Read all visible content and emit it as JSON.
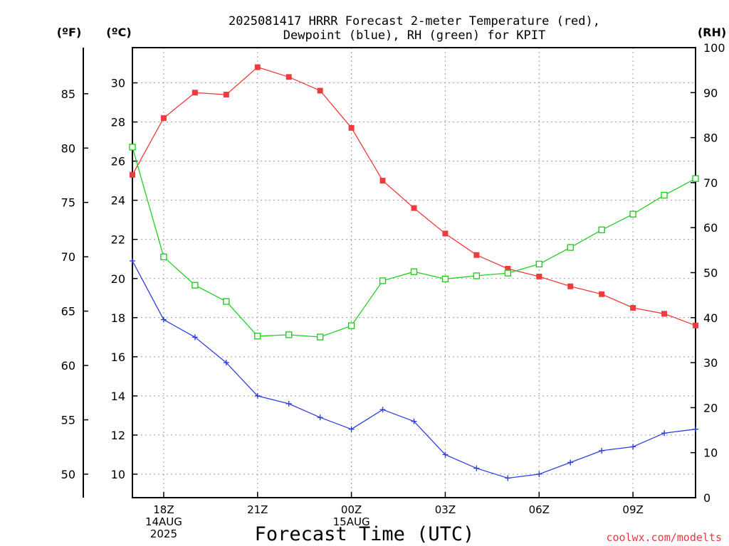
{
  "chart_data": {
    "type": "line",
    "title_lines": [
      "2025081417 HRRR Forecast 2-meter Temperature (red),",
      "Dewpoint (blue), RH (green) for KPIT"
    ],
    "xlabel": "Forecast Time (UTC)",
    "credit": "coolwx.com/modelts",
    "units": {
      "fahrenheit": "(ºF)",
      "celsius": "(ºC)",
      "rh": "(RH)"
    },
    "x_hours": [
      0,
      1,
      2,
      3,
      4,
      5,
      6,
      7,
      8,
      9,
      10,
      11,
      12,
      13,
      14,
      15,
      16,
      17,
      18
    ],
    "x_ticks": [
      {
        "hour": 1,
        "lines": [
          "18Z",
          "14AUG",
          "2025"
        ]
      },
      {
        "hour": 4,
        "lines": [
          "21Z"
        ]
      },
      {
        "hour": 7,
        "lines": [
          "00Z",
          "15AUG"
        ]
      },
      {
        "hour": 10,
        "lines": [
          "03Z"
        ]
      },
      {
        "hour": 13,
        "lines": [
          "06Z"
        ]
      },
      {
        "hour": 16,
        "lines": [
          "09Z"
        ]
      }
    ],
    "grid": true,
    "y_celsius": {
      "min": 8.8,
      "max": 31.8,
      "ticks": [
        "10",
        "12",
        "14",
        "16",
        "18",
        "20",
        "22",
        "24",
        "26",
        "28",
        "30"
      ]
    },
    "y_fahrenheit": {
      "ticks": [
        "50",
        "55",
        "60",
        "65",
        "70",
        "75",
        "80",
        "85"
      ]
    },
    "y_rh": {
      "min": 0,
      "max": 100,
      "ticks": [
        "0",
        "10",
        "20",
        "30",
        "40",
        "50",
        "60",
        "70",
        "80",
        "90",
        "100"
      ]
    },
    "series": [
      {
        "key": "temperature",
        "axis": "celsius",
        "color": "#ee3b3b",
        "marker": "filled-square",
        "values": [
          25.3,
          28.2,
          29.5,
          29.4,
          30.8,
          30.3,
          29.6,
          27.7,
          25.0,
          23.6,
          22.3,
          21.2,
          20.5,
          20.1,
          19.6,
          19.2,
          18.5,
          18.2,
          17.6
        ]
      },
      {
        "key": "dewpoint",
        "axis": "celsius",
        "color": "#2f3fe0",
        "marker": "plus",
        "values": [
          20.9,
          17.9,
          17.0,
          15.7,
          14.0,
          13.6,
          12.9,
          12.3,
          13.3,
          12.7,
          11.0,
          10.3,
          9.8,
          10.0,
          10.6,
          11.2,
          11.4,
          12.1,
          12.3
        ]
      },
      {
        "key": "rh",
        "axis": "rh",
        "color": "#1ed21e",
        "marker": "open-square",
        "values": [
          77.9,
          53.5,
          47.2,
          43.6,
          35.9,
          36.2,
          35.7,
          38.2,
          48.2,
          50.2,
          48.6,
          49.3,
          49.9,
          51.9,
          55.6,
          59.5,
          63.0,
          67.2,
          70.9
        ]
      }
    ]
  }
}
